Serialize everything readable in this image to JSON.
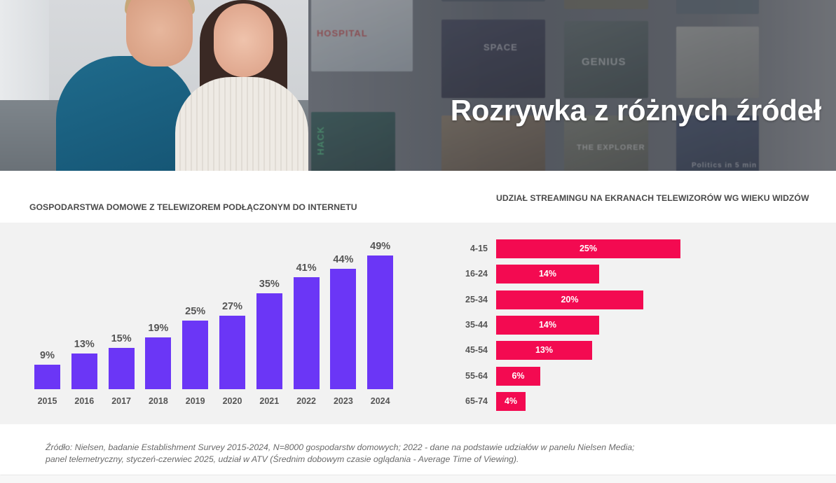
{
  "banner": {
    "title": "Rozrywka z różnych źródeł",
    "poster_labels": [
      "HOSPITAL",
      "SPACE",
      "GENIUS",
      "HACK",
      "THE EXPLORER",
      "Politics in 5 min"
    ]
  },
  "colors": {
    "vertical_bar": "#6b36f6",
    "horizontal_bar": "#f30a51",
    "panel_background": "#f2f2f2",
    "label_text": "#555555"
  },
  "chart_data": [
    {
      "type": "bar",
      "orientation": "vertical",
      "title": "GOSPODARSTWA DOMOWE Z TELEWIZOREM PODŁĄCZONYM DO INTERNETU",
      "categories": [
        "2015",
        "2016",
        "2017",
        "2018",
        "2019",
        "2020",
        "2021",
        "2022",
        "2023",
        "2024"
      ],
      "values": [
        9,
        13,
        15,
        19,
        25,
        27,
        35,
        41,
        44,
        49
      ],
      "value_labels": [
        "9%",
        "13%",
        "15%",
        "19%",
        "25%",
        "27%",
        "35%",
        "41%",
        "44%",
        "49%"
      ],
      "unit": "%",
      "xlabel": "",
      "ylabel": "",
      "ylim": [
        0,
        50
      ],
      "grid": false,
      "legend": null
    },
    {
      "type": "bar",
      "orientation": "horizontal",
      "title": "UDZIAŁ STREAMINGU NA EKRANACH TELEWIZORÓW WG WIEKU WIDZÓW",
      "categories": [
        "4-15",
        "16-24",
        "25-34",
        "35-44",
        "45-54",
        "55-64",
        "65-74"
      ],
      "values": [
        25,
        14,
        20,
        14,
        13,
        6,
        4
      ],
      "value_labels": [
        "25%",
        "14%",
        "20%",
        "14%",
        "13%",
        "6%",
        "4%"
      ],
      "unit": "%",
      "xlabel": "",
      "ylabel": "",
      "xlim": [
        0,
        25
      ],
      "grid": false,
      "legend": null
    }
  ],
  "footer": {
    "source_line_1": "Źródło: Nielsen, badanie Establishment Survey 2015-2024, N=8000 gospodarstw domowych; 2022 - dane na podstawie udziałów w panelu Nielsen Media;",
    "source_line_2": "panel telemetryczny, styczeń-czerwiec 2025, udział w ATV (Średnim dobowym czasie oglądania - Average Time of Viewing)."
  }
}
